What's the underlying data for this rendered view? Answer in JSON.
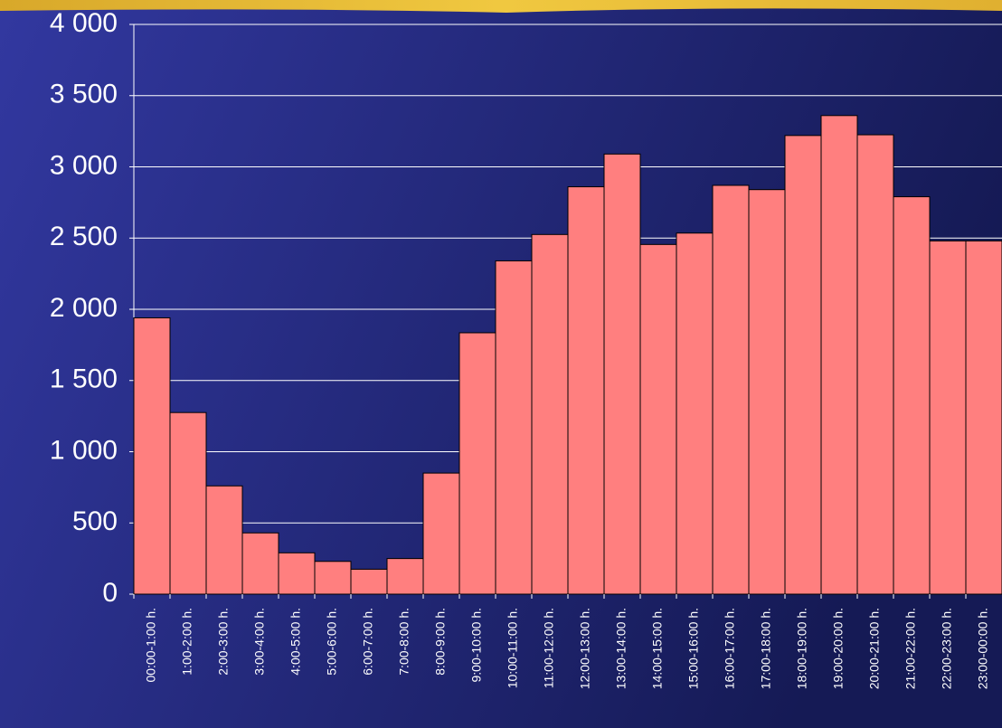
{
  "chart_data": {
    "type": "bar",
    "categories": [
      "00:00-1:00 h.",
      "1:00-2:00 h.",
      "2:00-3:00 h.",
      "3:00-4:00 h.",
      "4:00-5:00 h.",
      "5:00-6:00 h.",
      "6:00-7:00 h.",
      "7:00-8:00 h.",
      "8:00-9:00 h.",
      "9:00-10:00 h.",
      "10:00-11:00 h.",
      "11:00-12:00 h.",
      "12:00-13:00 h.",
      "13:00-14:00 h.",
      "14:00-15:00 h.",
      "15:00-16:00 h.",
      "16:00-17:00 h.",
      "17:00-18:00 h.",
      "18:00-19:00 h.",
      "19:00-20:00 h.",
      "20:00-21:00 h.",
      "21:00-22:00 h.",
      "22:00-23:00 h.",
      "23:00-00:00 h."
    ],
    "values": [
      1940,
      1275,
      760,
      430,
      290,
      230,
      175,
      250,
      850,
      1835,
      2340,
      2525,
      2860,
      3090,
      2455,
      2535,
      2870,
      2840,
      3220,
      3360,
      3225,
      2790,
      2480,
      2480
    ],
    "color": "#ff7f7f",
    "ylim": [
      0,
      4000
    ],
    "yticks": [
      0,
      500,
      {
        "value": 1000,
        "label": "1 000"
      },
      {
        "value": 1500,
        "label": "1 500"
      },
      {
        "value": 2000,
        "label": "2 000"
      },
      {
        "value": 2500,
        "label": "2 500"
      },
      {
        "value": 3000,
        "label": "3 000"
      },
      {
        "value": 3500,
        "label": "3 500"
      },
      {
        "value": 4000,
        "label": "4 000"
      }
    ],
    "grid": true
  }
}
